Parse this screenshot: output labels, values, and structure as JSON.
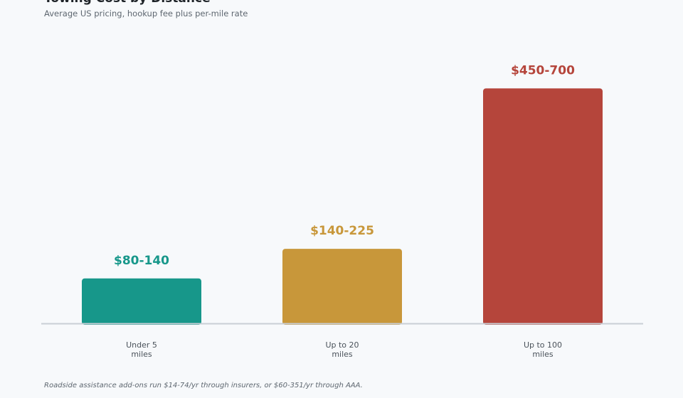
{
  "chart_data": {
    "type": "bar",
    "title": "Towing Cost by Distance",
    "subtitle": "Average US pricing, hookup fee plus per-mile rate",
    "categories": [
      [
        "Under 5",
        "miles"
      ],
      [
        "Up to 20",
        "miles"
      ],
      [
        "Up to 100",
        "miles"
      ]
    ],
    "value_labels": [
      "$80-140",
      "$140-225",
      "$450-700"
    ],
    "ranges": [
      [
        80,
        140
      ],
      [
        140,
        225
      ],
      [
        450,
        700
      ]
    ],
    "values": [
      110,
      182.5,
      575
    ],
    "colors": [
      "#17978a",
      "#c8973a",
      "#b5453b"
    ],
    "axis_color": "#c9cfd6",
    "ylim": [
      0,
      600
    ],
    "grid": false,
    "legend": "none",
    "footnote": "Roadside assistance add-ons run $14-74/yr through insurers, or $60-351/yr through AAA."
  }
}
